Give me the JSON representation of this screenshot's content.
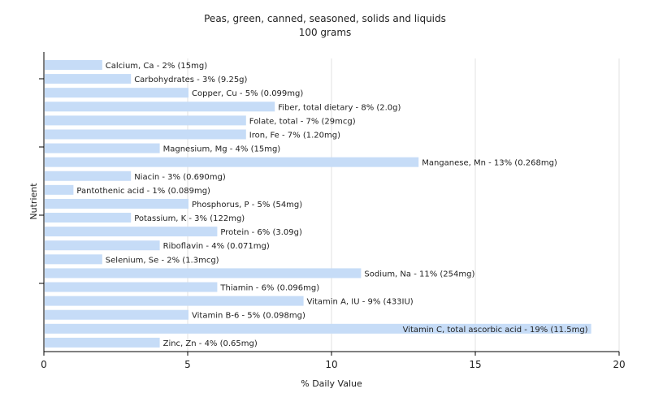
{
  "chart_data": {
    "type": "bar",
    "orientation": "horizontal",
    "title": "Peas, green, canned, seasoned, solids and liquids",
    "subtitle": "100 grams",
    "xlabel": "% Daily Value",
    "ylabel": "Nutrient",
    "xlim": [
      0,
      20
    ],
    "xticks": [
      "0",
      "5",
      "10",
      "15",
      "20"
    ],
    "grid": true,
    "bar_color": "#c6dcf7",
    "categories": [
      "Calcium, Ca",
      "Carbohydrates",
      "Copper, Cu",
      "Fiber, total dietary",
      "Folate, total",
      "Iron, Fe",
      "Magnesium, Mg",
      "Manganese, Mn",
      "Niacin",
      "Pantothenic acid",
      "Phosphorus, P",
      "Potassium, K",
      "Protein",
      "Riboflavin",
      "Selenium, Se",
      "Sodium, Na",
      "Thiamin",
      "Vitamin A, IU",
      "Vitamin B-6",
      "Vitamin C, total ascorbic acid",
      "Zinc, Zn"
    ],
    "values": [
      2,
      3,
      5,
      8,
      7,
      7,
      4,
      13,
      3,
      1,
      5,
      3,
      6,
      4,
      2,
      11,
      6,
      9,
      5,
      19,
      4
    ],
    "labels": [
      "Calcium, Ca - 2% (15mg)",
      "Carbohydrates - 3% (9.25g)",
      "Copper, Cu - 5% (0.099mg)",
      "Fiber, total dietary - 8% (2.0g)",
      "Folate, total - 7% (29mcg)",
      "Iron, Fe - 7% (1.20mg)",
      "Magnesium, Mg - 4% (15mg)",
      "Manganese, Mn - 13% (0.268mg)",
      "Niacin - 3% (0.690mg)",
      "Pantothenic acid - 1% (0.089mg)",
      "Phosphorus, P - 5% (54mg)",
      "Potassium, K - 3% (122mg)",
      "Protein - 6% (3.09g)",
      "Riboflavin - 4% (0.071mg)",
      "Selenium, Se - 2% (1.3mcg)",
      "Sodium, Na - 11% (254mg)",
      "Thiamin - 6% (0.096mg)",
      "Vitamin A, IU - 9% (433IU)",
      "Vitamin B-6 - 5% (0.098mg)",
      "Vitamin C, total ascorbic acid - 19% (11.5mg)",
      "Zinc, Zn - 4% (0.65mg)"
    ]
  }
}
